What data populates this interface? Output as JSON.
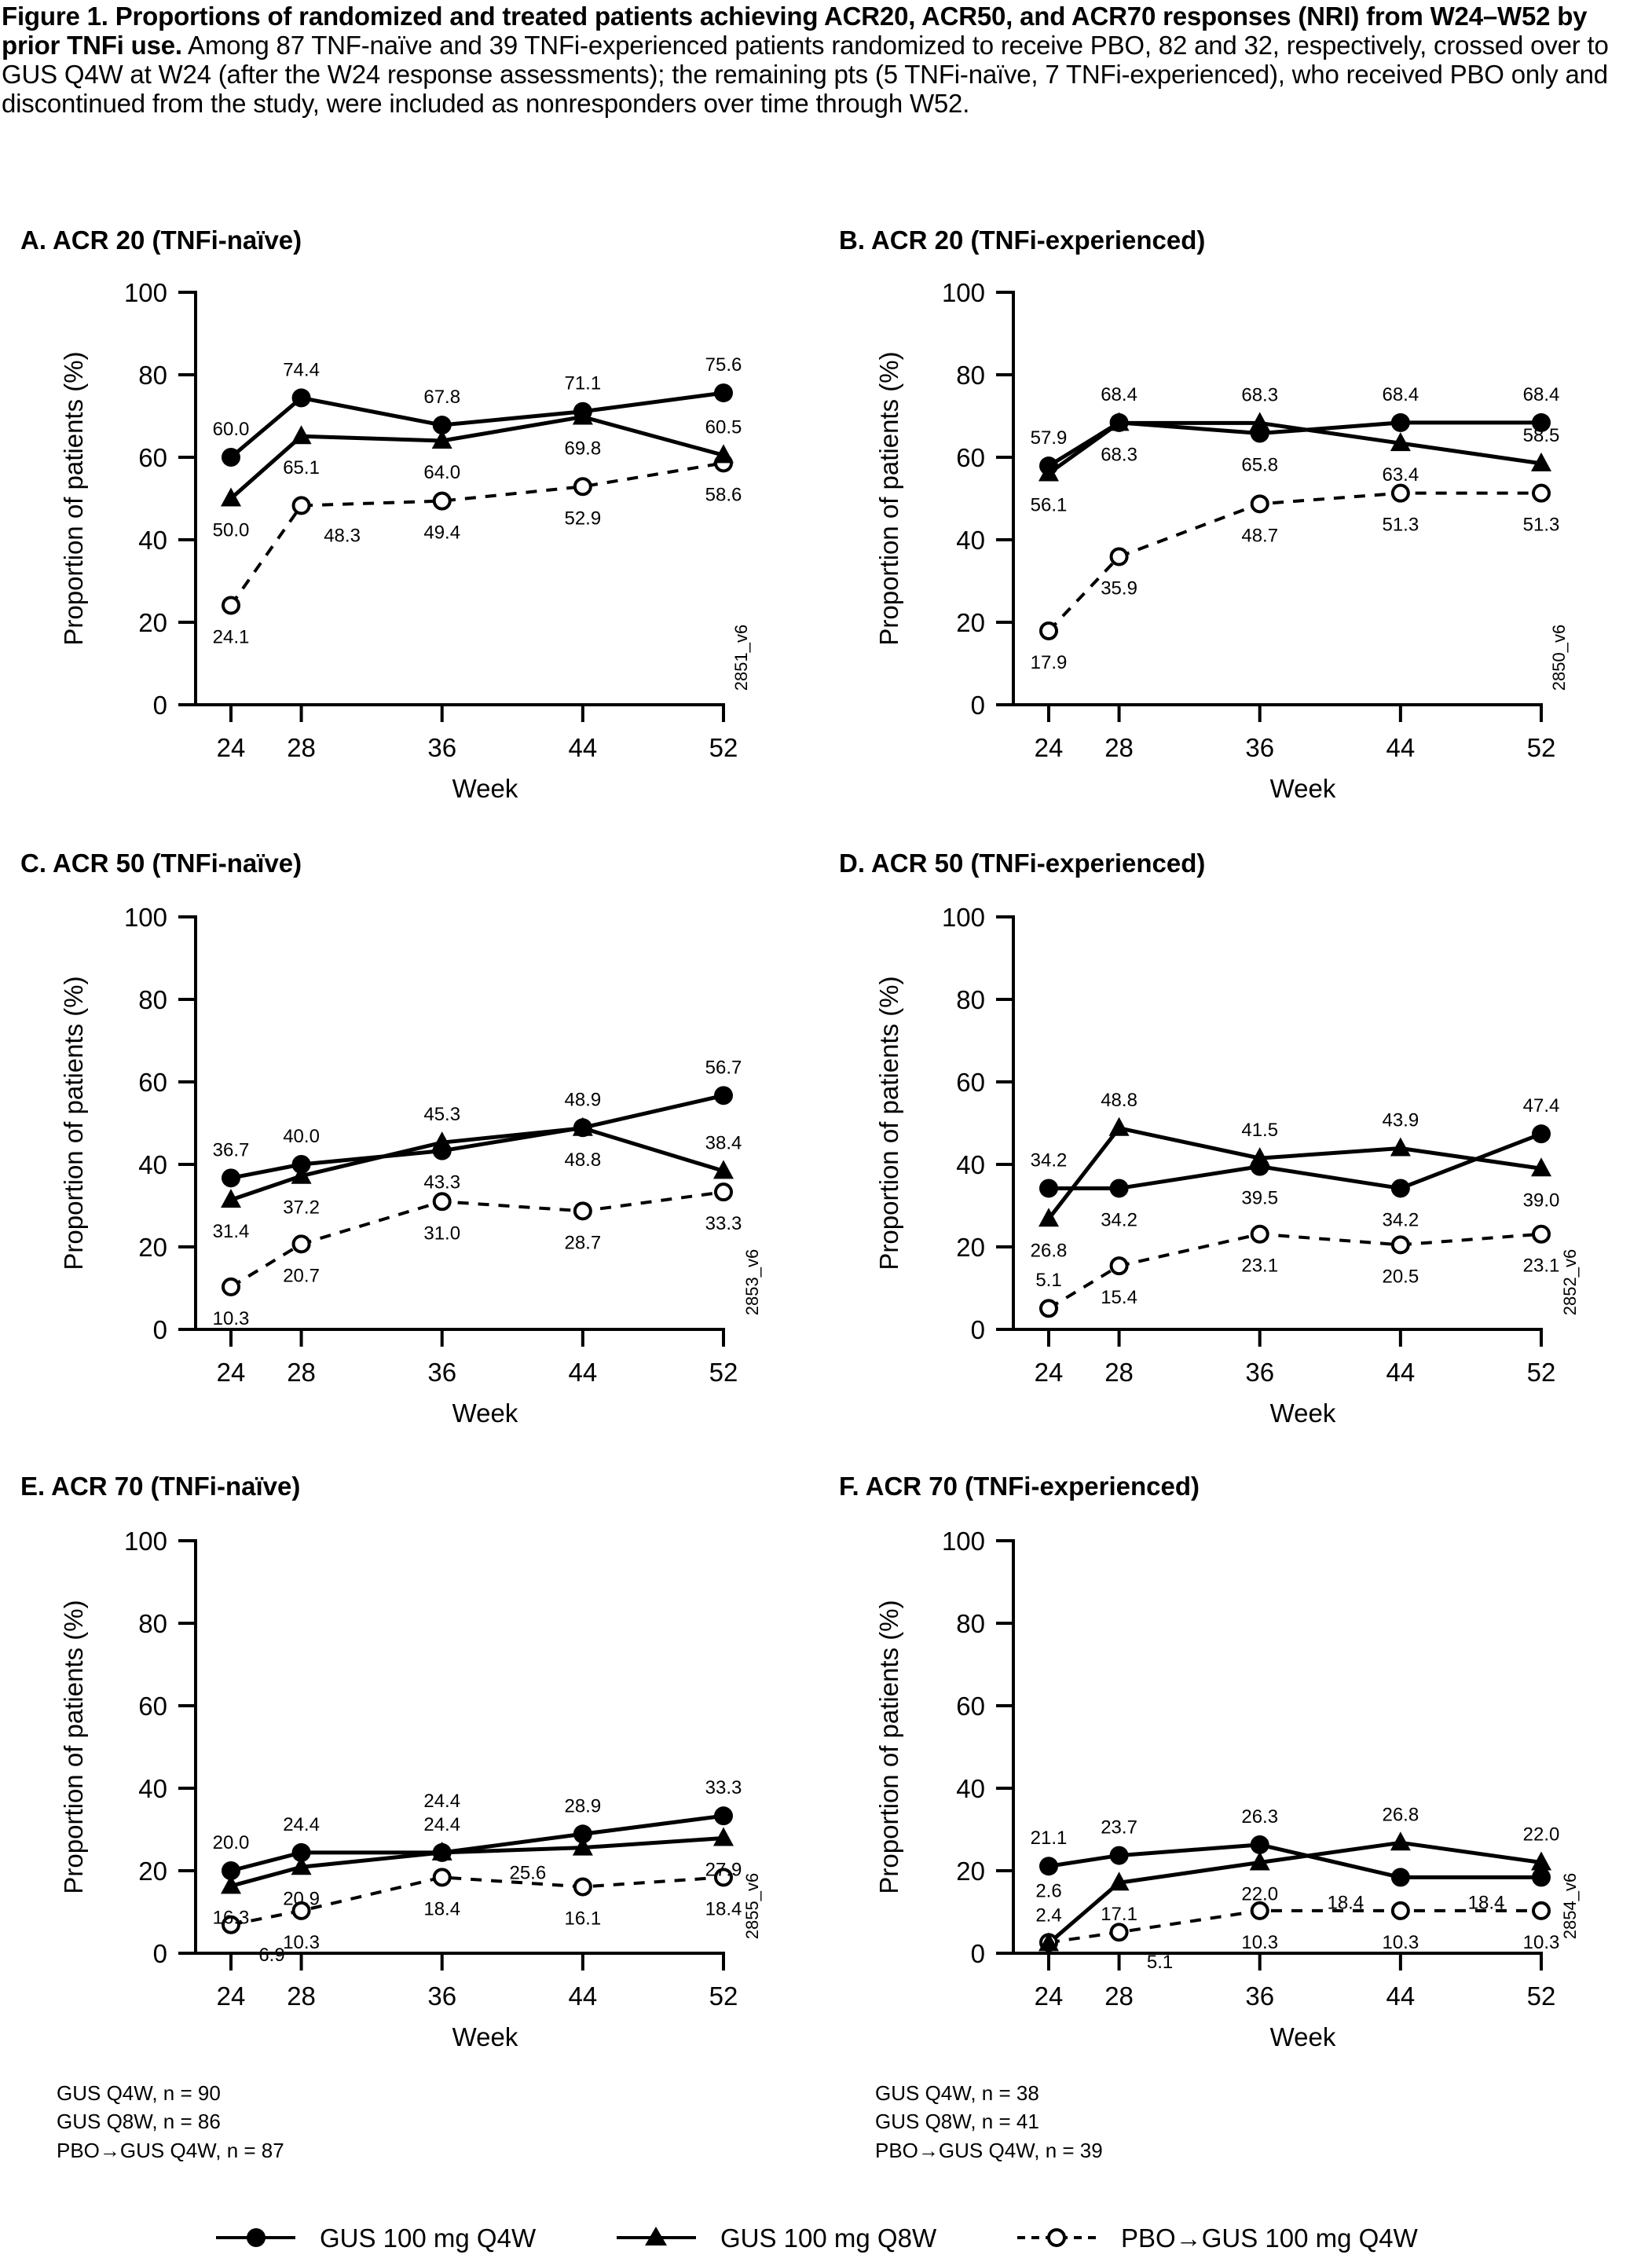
{
  "caption": {
    "bold": "Figure 1. Proportions of randomized and treated patients achieving ACR20, ACR50, and ACR70 responses (NRI) from W24–W52 by prior TNFi use.",
    "text": " Among 87 TNF-naïve and 39 TNFi-experienced patients randomized to receive PBO, 82 and 32, respectively, crossed over to GUS Q4W at W24 (after the W24 response assessments); the remaining pts (5 TNFi-naïve, 7 TNFi-experienced), who received PBO only and discontinued from the study, were included as nonresponders over time through W52."
  },
  "legend": [
    {
      "key": "q4w",
      "label": "GUS 100 mg Q4W",
      "marker": "filled-circle",
      "line": "solid"
    },
    {
      "key": "q8w",
      "label": "GUS 100 mg Q8W",
      "marker": "filled-triangle",
      "line": "solid"
    },
    {
      "key": "pbo",
      "label": "PBO→GUS 100 mg Q4W",
      "marker": "open-circle",
      "line": "dashed"
    }
  ],
  "footnotes": {
    "naive": [
      "GUS Q4W, n = 90",
      "GUS Q8W, n = 86",
      "PBO→GUS Q4W, n = 87"
    ],
    "experienced": [
      "GUS Q4W, n = 38",
      "GUS Q8W, n = 41",
      "PBO→GUS Q4W, n = 39"
    ]
  },
  "chart_data": [
    {
      "panel": "A",
      "type": "line",
      "title": "A. ACR 20 (TNFi-naïve)",
      "version": "2851_v6",
      "xlabel": "Week",
      "ylabel": "Proportion of patients (%)",
      "x": [
        24,
        28,
        36,
        44,
        52
      ],
      "ylim": [
        0,
        100
      ],
      "yticks": [
        0,
        20,
        40,
        60,
        80,
        100
      ],
      "grid": false,
      "series": [
        {
          "key": "q4w",
          "name": "GUS 100 mg Q4W",
          "values": [
            60.0,
            74.4,
            67.8,
            71.1,
            75.6
          ],
          "labels": [
            "60.0",
            "74.4",
            "67.8",
            "71.1",
            "75.6"
          ],
          "label_pos": [
            "above",
            "above",
            "above",
            "above",
            "above"
          ]
        },
        {
          "key": "q8w",
          "name": "GUS 100 mg Q8W",
          "values": [
            50.0,
            65.1,
            64.0,
            69.8,
            60.5
          ],
          "labels": [
            "50.0",
            "65.1",
            "64.0",
            "69.8",
            "60.5"
          ],
          "label_pos": [
            "below",
            "below",
            "below",
            "below",
            "above"
          ]
        },
        {
          "key": "pbo",
          "name": "PBO→GUS 100 mg Q4W",
          "values": [
            24.1,
            48.3,
            49.4,
            52.9,
            58.6
          ],
          "labels": [
            "24.1",
            "48.3",
            "49.4",
            "52.9",
            "58.6"
          ],
          "label_pos": [
            "below",
            "below-right",
            "below",
            "below",
            "below"
          ]
        }
      ]
    },
    {
      "panel": "B",
      "type": "line",
      "title": "B. ACR 20 (TNFi-experienced)",
      "version": "2850_v6",
      "xlabel": "Week",
      "ylabel": "Proportion of patients (%)",
      "x": [
        24,
        28,
        36,
        44,
        52
      ],
      "ylim": [
        0,
        100
      ],
      "yticks": [
        0,
        20,
        40,
        60,
        80,
        100
      ],
      "grid": false,
      "series": [
        {
          "key": "q4w",
          "name": "GUS 100 mg Q4W",
          "values": [
            57.9,
            68.4,
            65.8,
            68.4,
            68.4
          ],
          "labels": [
            "57.9",
            "68.4",
            "65.8",
            "68.4",
            "68.4"
          ],
          "label_pos": [
            "above",
            "above",
            "below",
            "above",
            "above"
          ]
        },
        {
          "key": "q8w",
          "name": "GUS 100 mg Q8W",
          "values": [
            56.1,
            68.3,
            68.3,
            63.4,
            58.5
          ],
          "labels": [
            "56.1",
            "68.3",
            "68.3",
            "63.4",
            "58.5"
          ],
          "label_pos": [
            "below",
            "below",
            "above",
            "below",
            "above"
          ]
        },
        {
          "key": "pbo",
          "name": "PBO→GUS 100 mg Q4W",
          "values": [
            17.9,
            35.9,
            48.7,
            51.3,
            51.3
          ],
          "labels": [
            "17.9",
            "35.9",
            "48.7",
            "51.3",
            "51.3"
          ],
          "label_pos": [
            "below",
            "below",
            "below",
            "below",
            "below"
          ]
        }
      ]
    },
    {
      "panel": "C",
      "type": "line",
      "title": "C. ACR 50 (TNFi-naïve)",
      "version": "2853_v6",
      "xlabel": "Week",
      "ylabel": "Proportion of patients (%)",
      "x": [
        24,
        28,
        36,
        44,
        52
      ],
      "ylim": [
        0,
        100
      ],
      "yticks": [
        0,
        20,
        40,
        60,
        80,
        100
      ],
      "grid": false,
      "series": [
        {
          "key": "q4w",
          "name": "GUS 100 mg Q4W",
          "values": [
            36.7,
            40.0,
            43.3,
            48.9,
            56.7
          ],
          "labels": [
            "36.7",
            "40.0",
            "43.3",
            "48.9",
            "56.7"
          ],
          "label_pos": [
            "above",
            "above",
            "below",
            "above",
            "above"
          ]
        },
        {
          "key": "q8w",
          "name": "GUS 100 mg Q8W",
          "values": [
            31.4,
            37.2,
            45.3,
            48.8,
            38.4
          ],
          "labels": [
            "31.4",
            "37.2",
            "45.3",
            "48.8",
            "38.4"
          ],
          "label_pos": [
            "below",
            "below",
            "above",
            "below",
            "above"
          ]
        },
        {
          "key": "pbo",
          "name": "PBO→GUS 100 mg Q4W",
          "values": [
            10.3,
            20.7,
            31.0,
            28.7,
            33.3
          ],
          "labels": [
            "10.3",
            "20.7",
            "31.0",
            "28.7",
            "33.3"
          ],
          "label_pos": [
            "below",
            "below",
            "below",
            "below",
            "below"
          ]
        }
      ]
    },
    {
      "panel": "D",
      "type": "line",
      "title": "D. ACR 50 (TNFi-experienced)",
      "version": "2852_v6",
      "xlabel": "Week",
      "ylabel": "Proportion of patients (%)",
      "x": [
        24,
        28,
        36,
        44,
        52
      ],
      "ylim": [
        0,
        100
      ],
      "yticks": [
        0,
        20,
        40,
        60,
        80,
        100
      ],
      "grid": false,
      "series": [
        {
          "key": "q4w",
          "name": "GUS 100 mg Q4W",
          "values": [
            34.2,
            34.2,
            39.5,
            34.2,
            47.4
          ],
          "labels": [
            "34.2",
            "34.2",
            "39.5",
            "34.2",
            "47.4"
          ],
          "label_pos": [
            "above",
            "below",
            "below",
            "below",
            "above"
          ]
        },
        {
          "key": "q8w",
          "name": "GUS 100 mg Q8W",
          "values": [
            26.8,
            48.8,
            41.5,
            43.9,
            39.0
          ],
          "labels": [
            "26.8",
            "48.8",
            "41.5",
            "43.9",
            "39.0"
          ],
          "label_pos": [
            "below",
            "above",
            "above",
            "above",
            "below"
          ]
        },
        {
          "key": "pbo",
          "name": "PBO→GUS 100 mg Q4W",
          "values": [
            5.1,
            15.4,
            23.1,
            20.5,
            23.1
          ],
          "labels": [
            "5.1",
            "15.4",
            "23.1",
            "20.5",
            "23.1"
          ],
          "label_pos": [
            "above",
            "below",
            "below",
            "below",
            "below"
          ]
        }
      ]
    },
    {
      "panel": "E",
      "type": "line",
      "title": "E. ACR 70 (TNFi-naïve)",
      "version": "2855_v6",
      "xlabel": "Week",
      "ylabel": "Proportion of patients (%)",
      "x": [
        24,
        28,
        36,
        44,
        52
      ],
      "ylim": [
        0,
        100
      ],
      "yticks": [
        0,
        20,
        40,
        60,
        80,
        100
      ],
      "grid": false,
      "series": [
        {
          "key": "q4w",
          "name": "GUS 100 mg Q4W",
          "values": [
            20.0,
            24.4,
            24.4,
            28.9,
            33.3
          ],
          "labels": [
            "20.0",
            "24.4",
            "24.4",
            "28.9",
            "33.3"
          ],
          "label_pos": [
            "above",
            "above",
            "above",
            "above",
            "above"
          ]
        },
        {
          "key": "q8w",
          "name": "GUS 100 mg Q8W",
          "values": [
            16.3,
            20.9,
            24.4,
            25.6,
            27.9
          ],
          "labels": [
            "16.3",
            "20.9",
            "24.4",
            "25.6",
            "27.9"
          ],
          "label_pos": [
            "below",
            "below",
            "above-high",
            "below-left",
            "below"
          ]
        },
        {
          "key": "pbo",
          "name": "PBO→GUS 100 mg Q4W",
          "values": [
            6.9,
            10.3,
            18.4,
            16.1,
            18.4
          ],
          "labels": [
            "6.9",
            "10.3",
            "18.4",
            "16.1",
            "18.4"
          ],
          "label_pos": [
            "below-right",
            "below",
            "below",
            "below",
            "below"
          ]
        }
      ]
    },
    {
      "panel": "F",
      "type": "line",
      "title": "F. ACR 70 (TNFi-experienced)",
      "version": "2854_v6",
      "xlabel": "Week",
      "ylabel": "Proportion of patients (%)",
      "x": [
        24,
        28,
        36,
        44,
        52
      ],
      "ylim": [
        0,
        100
      ],
      "yticks": [
        0,
        20,
        40,
        60,
        80,
        100
      ],
      "grid": false,
      "series": [
        {
          "key": "q4w",
          "name": "GUS 100 mg Q4W",
          "values": [
            21.1,
            23.7,
            26.3,
            18.4,
            18.4
          ],
          "labels": [
            "21.1",
            "23.7",
            "26.3",
            "18.4",
            "18.4"
          ],
          "label_pos": [
            "above",
            "above",
            "above",
            "below-left",
            "below-left"
          ]
        },
        {
          "key": "q8w",
          "name": "GUS 100 mg Q8W",
          "values": [
            2.4,
            17.1,
            22.0,
            26.8,
            22.0
          ],
          "labels": [
            "2.4",
            "17.1",
            "22.0",
            "26.8",
            "22.0"
          ],
          "label_pos": [
            "above",
            "below",
            "below",
            "above",
            "above"
          ]
        },
        {
          "key": "pbo",
          "name": "PBO→GUS 100 mg Q4W",
          "values": [
            2.6,
            5.1,
            10.3,
            10.3,
            10.3
          ],
          "labels": [
            "2.6",
            "5.1",
            "10.3",
            "10.3",
            "10.3"
          ],
          "label_pos": [
            "above-high",
            "below-right",
            "below",
            "below",
            "below"
          ]
        }
      ]
    }
  ]
}
